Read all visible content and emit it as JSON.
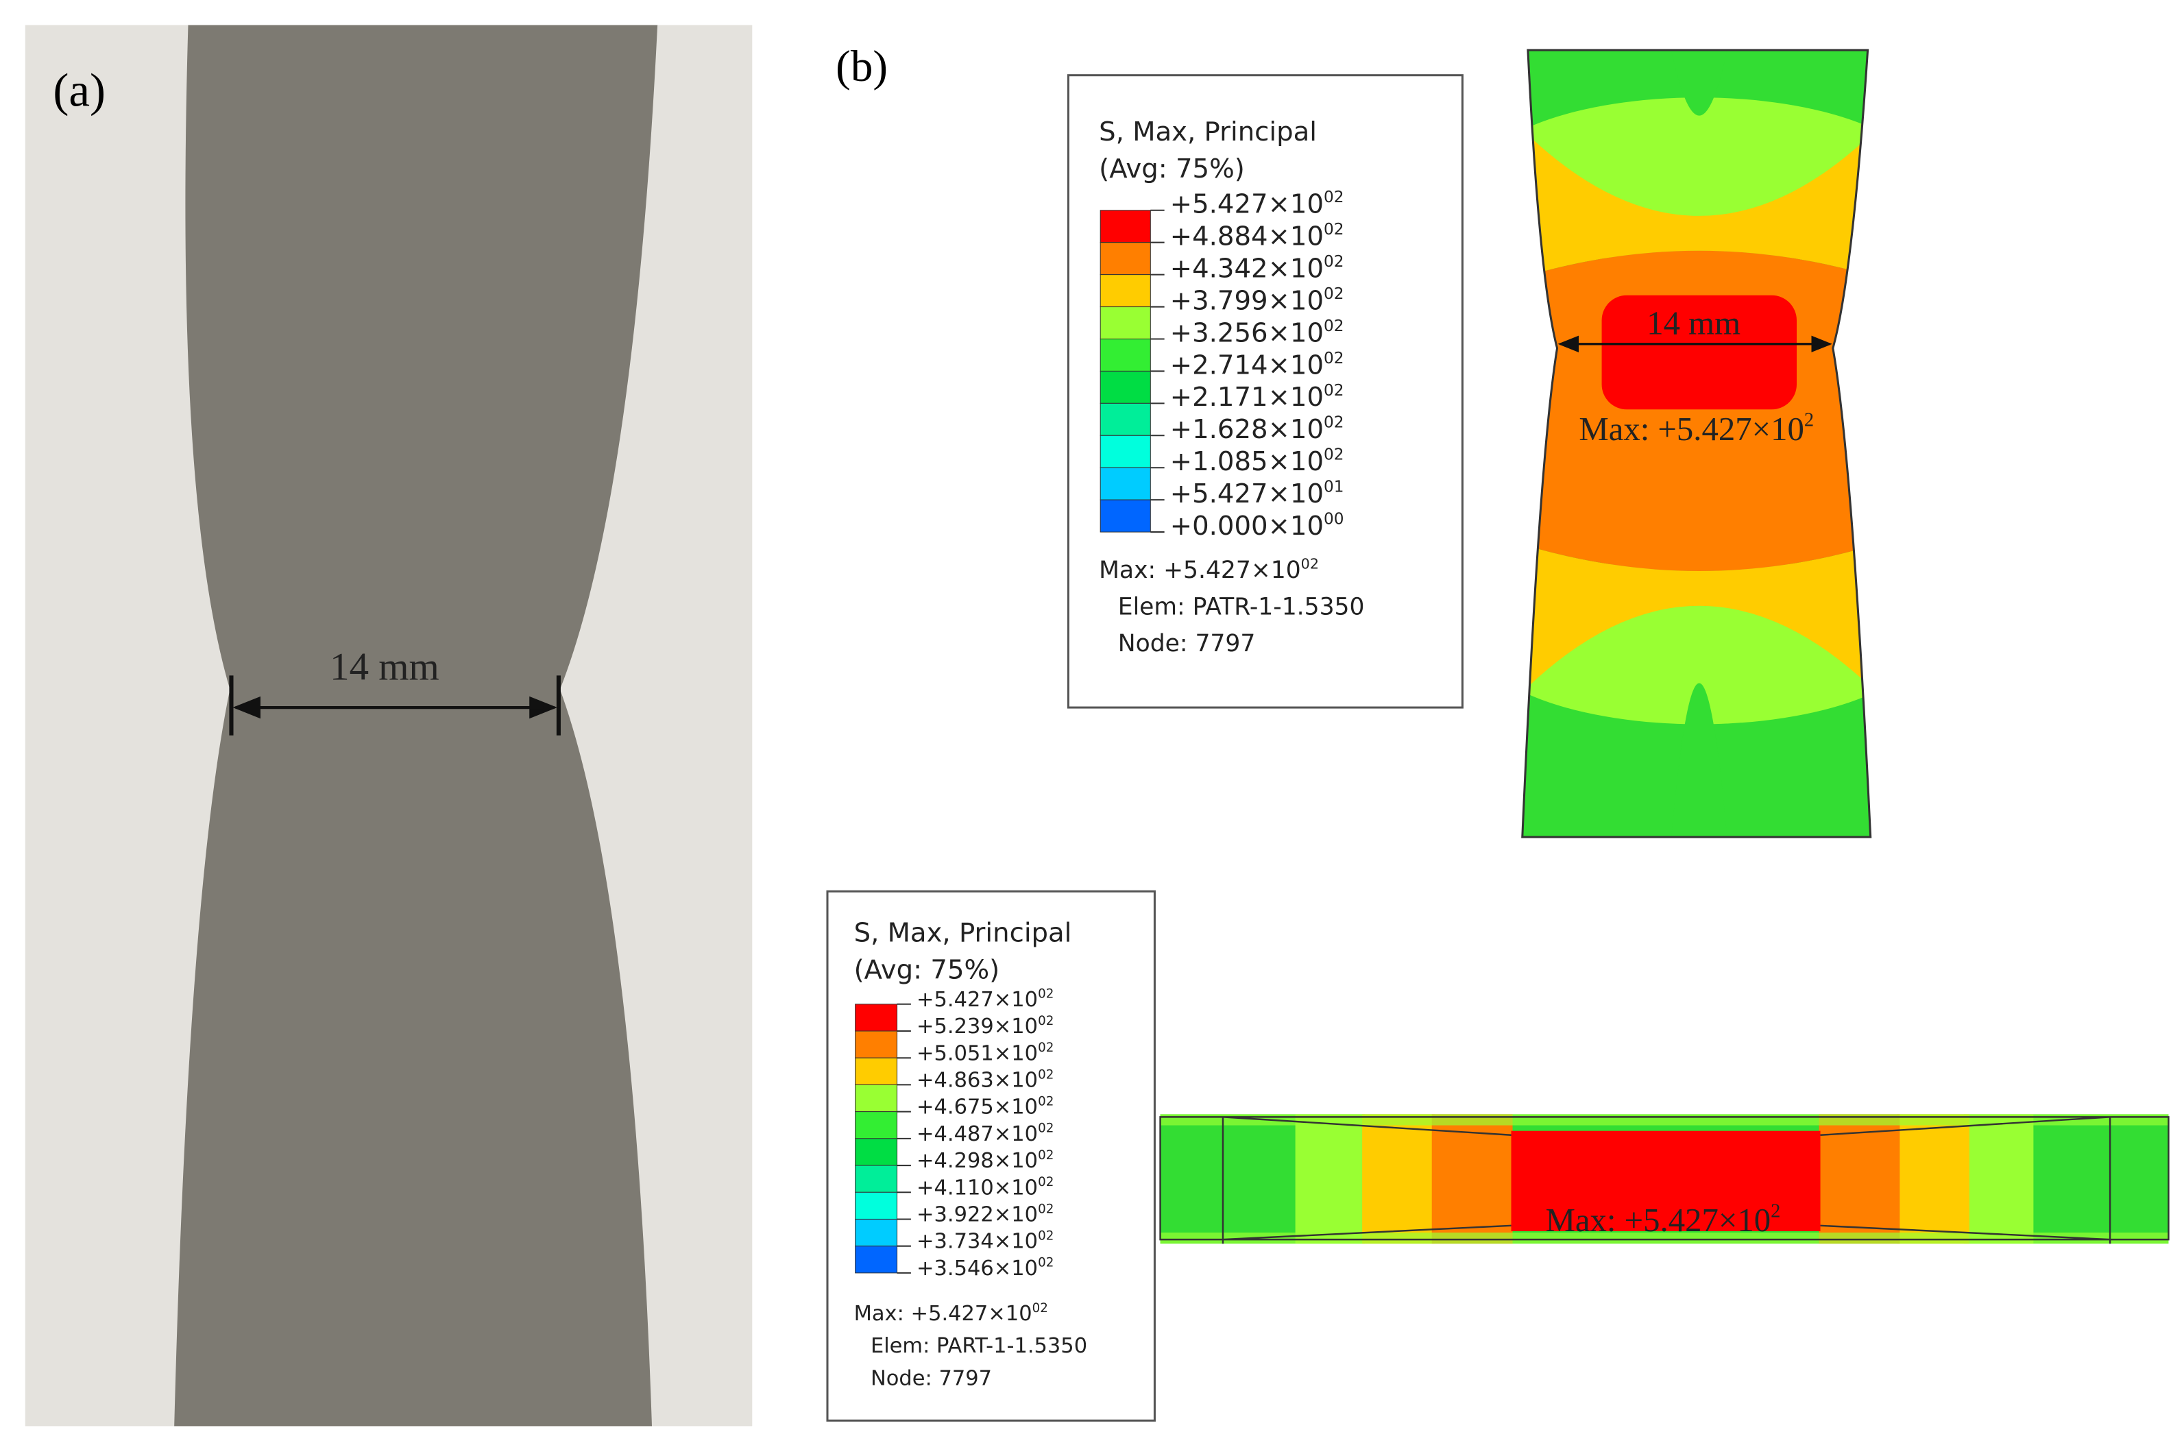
{
  "panel_a": {
    "label": "(a)",
    "dimension": "14 mm"
  },
  "panel_b": {
    "label": "(b)",
    "legend_top": {
      "title": "S, Max, Principal",
      "avg": "(Avg: 75%)",
      "colors": [
        "#ff0000",
        "#ff7f00",
        "#ffcc00",
        "#99ff33",
        "#33ee33",
        "#00dd44",
        "#00ee99",
        "#00ffdd",
        "#00ccff",
        "#0066ff",
        "#0000ff"
      ],
      "entries": [
        {
          "base": "+5.427×10",
          "exp": "02"
        },
        {
          "base": "+4.884×10",
          "exp": "02"
        },
        {
          "base": "+4.342×10",
          "exp": "02"
        },
        {
          "base": "+3.799×10",
          "exp": "02"
        },
        {
          "base": "+3.256×10",
          "exp": "02"
        },
        {
          "base": "+2.714×10",
          "exp": "02"
        },
        {
          "base": "+2.171×10",
          "exp": "02"
        },
        {
          "base": "+1.628×10",
          "exp": "02"
        },
        {
          "base": "+1.085×10",
          "exp": "02"
        },
        {
          "base": "+5.427×10",
          "exp": "01"
        },
        {
          "base": "+0.000×10",
          "exp": "00"
        }
      ],
      "max": {
        "base": "Max: +5.427×10",
        "exp": "02"
      },
      "elem": "Elem: PATR-1-1.5350",
      "node": "Node: 7797"
    },
    "model_top": {
      "dimension": "14 mm",
      "max": {
        "base": "Max: +5.427×10",
        "exp": "2"
      }
    },
    "legend_bottom": {
      "title": "S, Max, Principal",
      "avg": "(Avg: 75%)",
      "colors": [
        "#ff0000",
        "#ff7f00",
        "#ffcc00",
        "#99ff33",
        "#33ee33",
        "#00dd44",
        "#00ee99",
        "#00ffdd",
        "#00ccff",
        "#0066ff",
        "#0000ff"
      ],
      "entries": [
        {
          "base": "+5.427×10",
          "exp": "02"
        },
        {
          "base": "+5.239×10",
          "exp": "02"
        },
        {
          "base": "+5.051×10",
          "exp": "02"
        },
        {
          "base": "+4.863×10",
          "exp": "02"
        },
        {
          "base": "+4.675×10",
          "exp": "02"
        },
        {
          "base": "+4.487×10",
          "exp": "02"
        },
        {
          "base": "+4.298×10",
          "exp": "02"
        },
        {
          "base": "+4.110×10",
          "exp": "02"
        },
        {
          "base": "+3.922×10",
          "exp": "02"
        },
        {
          "base": "+3.734×10",
          "exp": "02"
        },
        {
          "base": "+3.546×10",
          "exp": "02"
        }
      ],
      "max": {
        "base": "Max: +5.427×10",
        "exp": "02"
      },
      "elem": "Elem: PART-1-1.5350",
      "node": "Node: 7797"
    },
    "model_bottom": {
      "max": {
        "base": "Max: +5.427×10",
        "exp": "2"
      }
    }
  }
}
